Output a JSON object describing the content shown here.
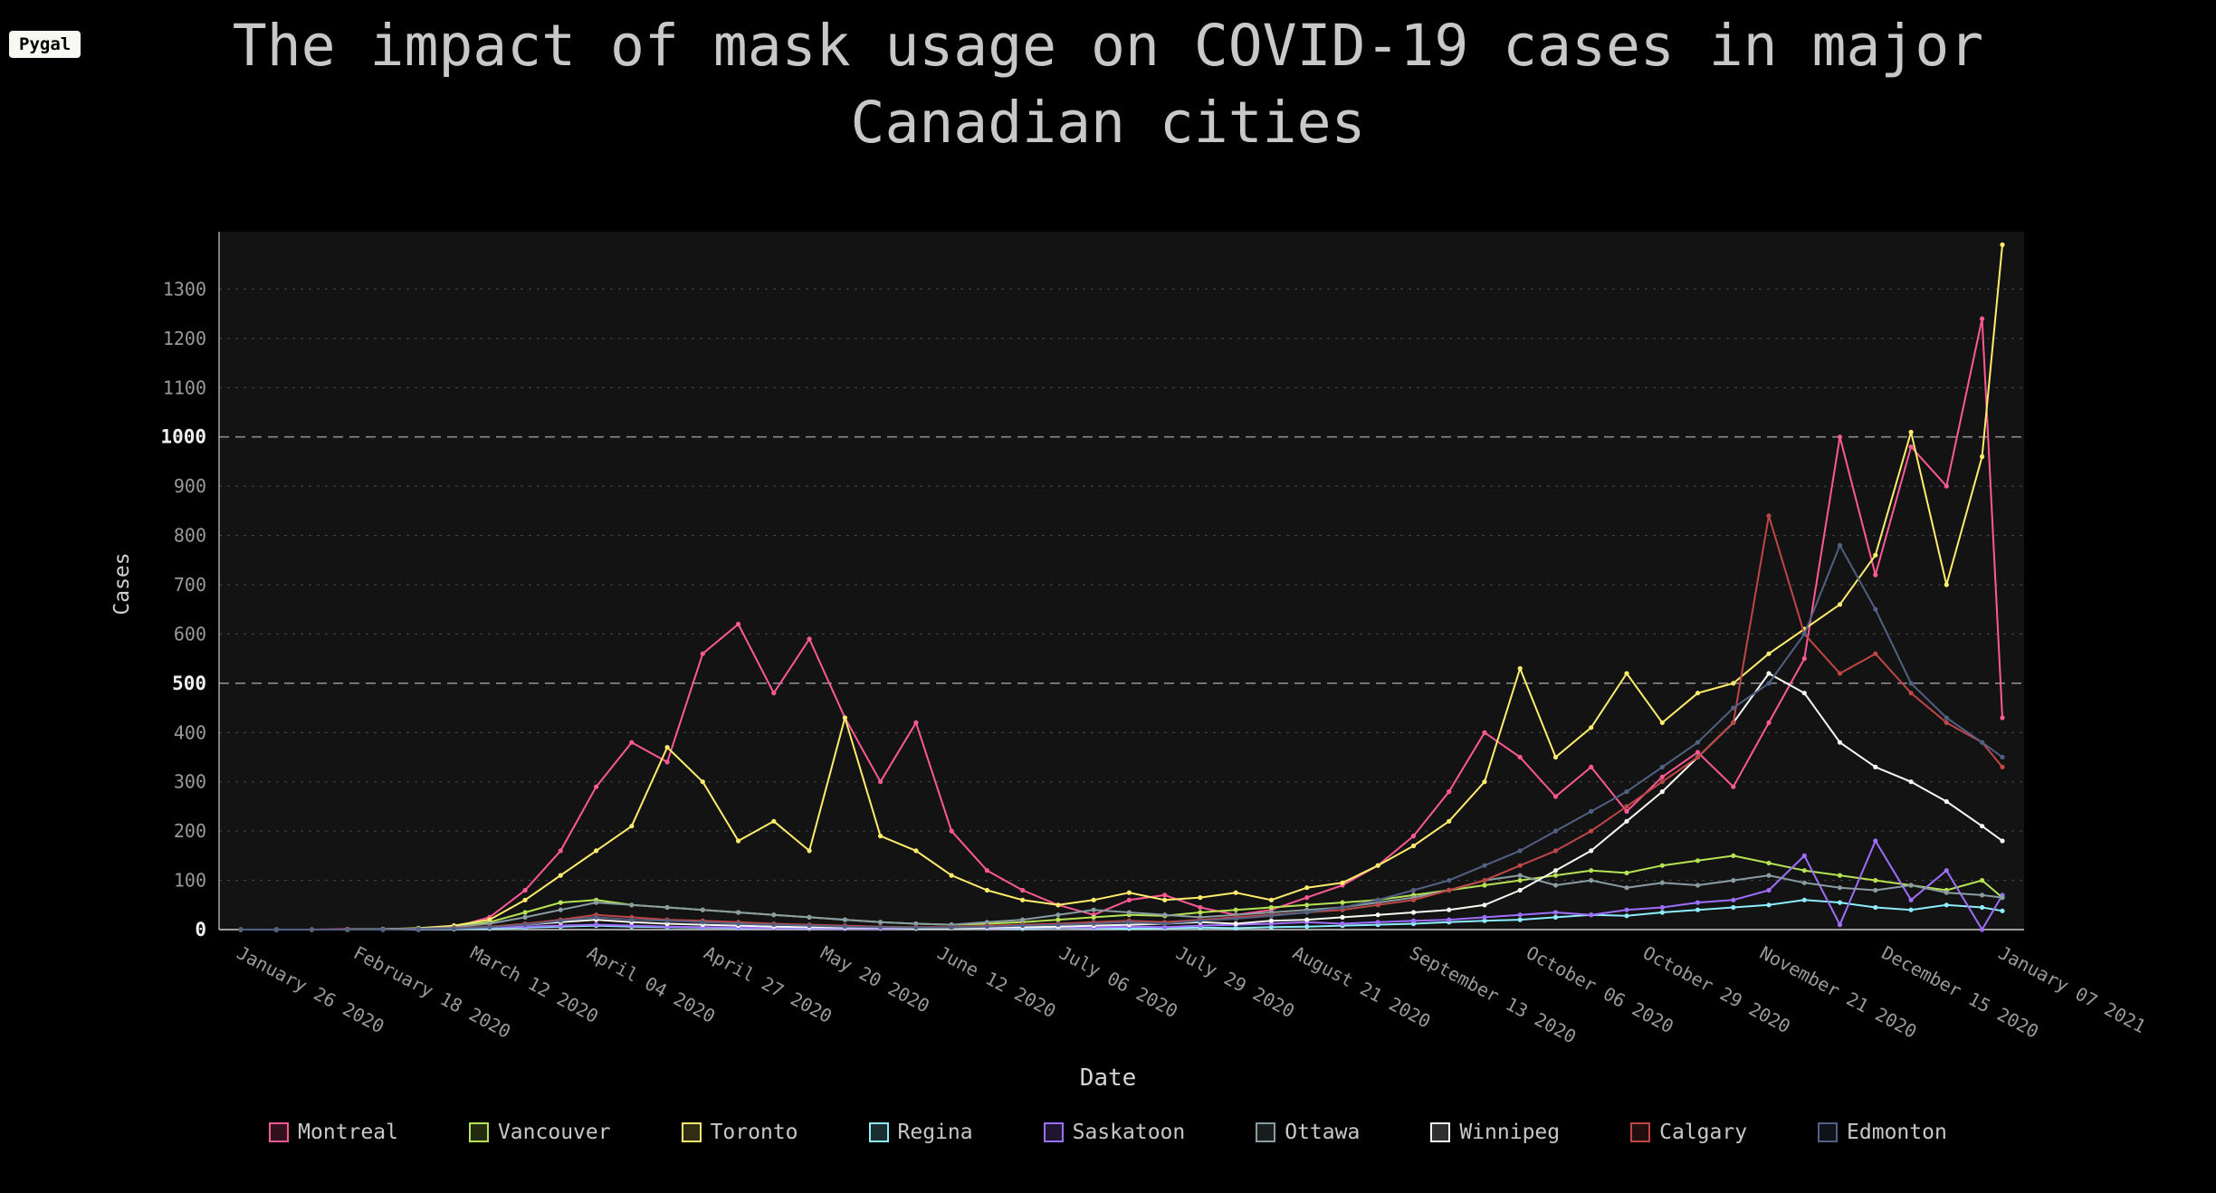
{
  "badge": {
    "label": "Pygal"
  },
  "title": "The impact of mask usage on COVID-19 cases in major Canadian cities",
  "chart_data": {
    "type": "line",
    "title": "The impact of mask usage on COVID-19 cases in major Canadian cities",
    "xlabel": "Date",
    "ylabel": "Cases",
    "ylim": [
      0,
      1400
    ],
    "y_ticks": [
      0,
      100,
      200,
      300,
      400,
      500,
      600,
      700,
      800,
      900,
      1000,
      1100,
      1200,
      1300
    ],
    "y_major_ticks": [
      0,
      500,
      1000
    ],
    "grid": "horizontal dashed lines, dark plot background",
    "legend_position": "bottom",
    "x_tick_days": [
      0,
      23,
      46,
      69,
      92,
      115,
      138,
      162,
      185,
      208,
      231,
      254,
      277,
      300,
      324,
      347
    ],
    "x_tick_labels": [
      "January 26 2020",
      "February 18 2020",
      "March 12 2020",
      "April 04 2020",
      "April 27 2020",
      "May 20 2020",
      "June 12 2020",
      "July 06 2020",
      "July 29 2020",
      "August 21 2020",
      "September 13 2020",
      "October 06 2020",
      "October 29 2020",
      "November 21 2020",
      "December 15 2020",
      "January 07 2021"
    ],
    "x_days": [
      0,
      7,
      14,
      21,
      28,
      35,
      42,
      49,
      56,
      63,
      70,
      77,
      84,
      91,
      98,
      105,
      112,
      119,
      126,
      133,
      140,
      147,
      154,
      161,
      168,
      175,
      182,
      189,
      196,
      203,
      210,
      217,
      224,
      231,
      238,
      245,
      252,
      259,
      266,
      273,
      280,
      287,
      294,
      301,
      308,
      315,
      322,
      329,
      336,
      343,
      347
    ],
    "series": [
      {
        "name": "Montreal",
        "color": "#ff5995",
        "values": [
          0,
          0,
          0,
          1,
          1,
          2,
          5,
          25,
          80,
          160,
          290,
          380,
          340,
          560,
          620,
          480,
          590,
          430,
          300,
          420,
          200,
          120,
          80,
          50,
          30,
          60,
          70,
          45,
          30,
          40,
          65,
          90,
          130,
          190,
          280,
          400,
          350,
          270,
          330,
          240,
          310,
          360,
          290,
          420,
          550,
          1000,
          720,
          980,
          900,
          1240,
          430
        ]
      },
      {
        "name": "Vancouver",
        "color": "#b6e354",
        "values": [
          0,
          0,
          0,
          0,
          1,
          2,
          6,
          15,
          35,
          55,
          60,
          50,
          45,
          40,
          35,
          30,
          25,
          20,
          15,
          12,
          10,
          12,
          15,
          20,
          25,
          30,
          28,
          35,
          40,
          45,
          50,
          55,
          60,
          70,
          80,
          90,
          100,
          110,
          120,
          115,
          130,
          140,
          150,
          135,
          120,
          110,
          100,
          90,
          80,
          100,
          65
        ]
      },
      {
        "name": "Toronto",
        "color": "#feed6c",
        "values": [
          0,
          0,
          0,
          0,
          1,
          3,
          8,
          20,
          60,
          110,
          160,
          210,
          370,
          300,
          180,
          220,
          160,
          430,
          190,
          160,
          110,
          80,
          60,
          50,
          60,
          75,
          60,
          65,
          75,
          60,
          85,
          95,
          130,
          170,
          220,
          300,
          530,
          350,
          410,
          520,
          420,
          480,
          500,
          560,
          610,
          660,
          760,
          1010,
          700,
          960,
          1390
        ]
      },
      {
        "name": "Regina",
        "color": "#8cedff",
        "values": [
          0,
          0,
          0,
          0,
          0,
          0,
          1,
          2,
          4,
          6,
          8,
          6,
          5,
          4,
          3,
          3,
          2,
          2,
          2,
          2,
          3,
          3,
          2,
          4,
          3,
          2,
          3,
          4,
          3,
          5,
          6,
          8,
          10,
          12,
          15,
          18,
          20,
          25,
          30,
          28,
          35,
          40,
          45,
          50,
          60,
          55,
          45,
          40,
          50,
          45,
          38
        ]
      },
      {
        "name": "Saskatoon",
        "color": "#9e6ffe",
        "values": [
          0,
          0,
          0,
          0,
          0,
          1,
          2,
          4,
          6,
          8,
          10,
          8,
          6,
          5,
          4,
          3,
          3,
          2,
          2,
          3,
          4,
          3,
          4,
          5,
          4,
          6,
          5,
          8,
          10,
          12,
          15,
          12,
          15,
          18,
          20,
          25,
          30,
          35,
          30,
          40,
          45,
          55,
          60,
          80,
          150,
          10,
          180,
          60,
          120,
          0,
          70
        ]
      },
      {
        "name": "Ottawa",
        "color": "#899ca1",
        "values": [
          0,
          0,
          0,
          0,
          1,
          2,
          5,
          12,
          25,
          40,
          55,
          50,
          45,
          40,
          35,
          30,
          25,
          20,
          15,
          12,
          10,
          15,
          20,
          30,
          40,
          35,
          30,
          25,
          30,
          35,
          40,
          45,
          55,
          65,
          80,
          100,
          110,
          90,
          100,
          85,
          95,
          90,
          100,
          110,
          95,
          85,
          80,
          90,
          75,
          70,
          65
        ]
      },
      {
        "name": "Winnipeg",
        "color": "#f8f8f2",
        "values": [
          0,
          0,
          0,
          0,
          0,
          1,
          2,
          5,
          10,
          15,
          20,
          15,
          12,
          10,
          8,
          6,
          5,
          4,
          4,
          3,
          3,
          4,
          5,
          6,
          8,
          10,
          12,
          15,
          12,
          18,
          20,
          25,
          30,
          35,
          40,
          50,
          80,
          120,
          160,
          220,
          280,
          350,
          420,
          520,
          480,
          380,
          330,
          300,
          260,
          210,
          180
        ]
      },
      {
        "name": "Calgary",
        "color": "#bf4646",
        "values": [
          0,
          0,
          0,
          0,
          0,
          1,
          3,
          6,
          12,
          20,
          30,
          25,
          20,
          18,
          15,
          12,
          10,
          8,
          6,
          5,
          5,
          8,
          10,
          12,
          15,
          18,
          15,
          20,
          25,
          30,
          35,
          40,
          50,
          60,
          80,
          100,
          130,
          160,
          200,
          250,
          300,
          350,
          420,
          840,
          600,
          520,
          560,
          480,
          420,
          380,
          330
        ]
      },
      {
        "name": "Edmonton",
        "color": "#516083",
        "values": [
          0,
          0,
          0,
          0,
          0,
          1,
          2,
          5,
          10,
          18,
          25,
          20,
          18,
          15,
          12,
          10,
          8,
          6,
          5,
          4,
          4,
          6,
          8,
          10,
          12,
          15,
          12,
          18,
          22,
          28,
          35,
          45,
          60,
          80,
          100,
          130,
          160,
          200,
          240,
          280,
          330,
          380,
          450,
          500,
          600,
          780,
          650,
          500,
          430,
          380,
          350
        ]
      }
    ]
  }
}
